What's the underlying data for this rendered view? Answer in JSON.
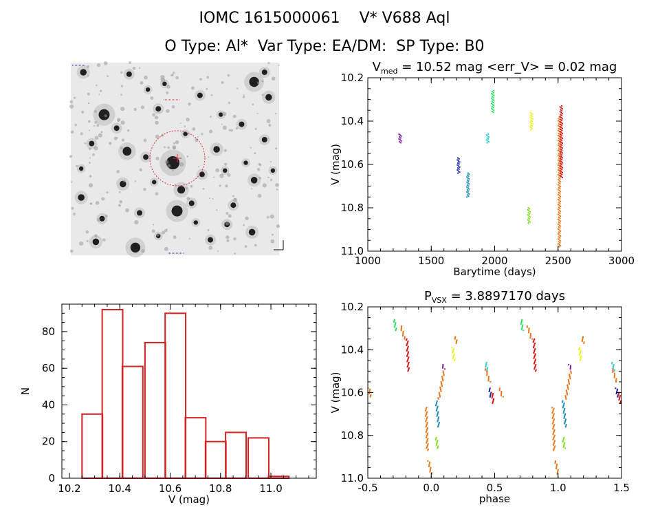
{
  "header": {
    "line1": "IOMC 1615000061    V* V688 Aql",
    "line2": "O Type: Al*  Var Type: EA/DM:  SP Type: B0"
  },
  "colors": {
    "histogram": "#d42020",
    "axes": "#000000",
    "aperture": "#e03030"
  },
  "chart_data": [
    {
      "type": "scatter",
      "panel": "lightcurve",
      "title": "V<sub>med</sub> = 10.52 mag <err_V> = 0.02 mag",
      "title_parts": [
        "V",
        "med",
        " = 10.52 mag <err_V> = 0.02 mag"
      ],
      "xlabel": "Barytime (days)",
      "ylabel": "V (mag)",
      "xlim": [
        1000,
        3000
      ],
      "ylim": [
        10.2,
        11.0
      ],
      "y_inverted": true,
      "xticks": [
        1000,
        1500,
        2000,
        2500,
        3000
      ],
      "yticks": [
        10.2,
        10.4,
        10.6,
        10.8,
        11.0
      ],
      "groups": [
        {
          "color": "#7a1fa0",
          "x": 1255,
          "ymin": 10.46,
          "ymax": 10.5
        },
        {
          "color": "#1e2ab0",
          "x": 1715,
          "ymin": 10.57,
          "ymax": 10.64
        },
        {
          "color": "#1f8fb8",
          "x": 1790,
          "ymin": 10.64,
          "ymax": 10.75
        },
        {
          "color": "#2ad0d0",
          "x": 1945,
          "ymin": 10.46,
          "ymax": 10.5
        },
        {
          "color": "#30e060",
          "x": 1985,
          "ymin": 10.26,
          "ymax": 10.36
        },
        {
          "color": "#f0f020",
          "x": 2290,
          "ymin": 10.36,
          "ymax": 10.44
        },
        {
          "color": "#80e020",
          "x": 2270,
          "ymin": 10.8,
          "ymax": 10.87
        },
        {
          "color": "#e87820",
          "x": 2510,
          "ymin": 10.38,
          "ymax": 10.98
        },
        {
          "color": "#d81818",
          "x": 2525,
          "ymin": 10.33,
          "ymax": 10.66
        }
      ]
    },
    {
      "type": "bar",
      "panel": "histogram",
      "xlabel": "V (mag)",
      "ylabel": "N",
      "xlim": [
        10.17,
        11.18
      ],
      "ylim": [
        0,
        95
      ],
      "xticks": [
        10.2,
        10.4,
        10.6,
        10.8,
        11.0
      ],
      "yticks": [
        0,
        20,
        40,
        60,
        80
      ],
      "bin_width": 0.0815,
      "bins": [
        {
          "x0": 10.25,
          "value": 35
        },
        {
          "x0": 10.33,
          "value": 92
        },
        {
          "x0": 10.41,
          "value": 61
        },
        {
          "x0": 10.5,
          "value": 74
        },
        {
          "x0": 10.58,
          "value": 90
        },
        {
          "x0": 10.66,
          "value": 33
        },
        {
          "x0": 10.74,
          "value": 20
        },
        {
          "x0": 10.82,
          "value": 25
        },
        {
          "x0": 10.91,
          "value": 22
        },
        {
          "x0": 10.99,
          "value": 1
        }
      ]
    },
    {
      "type": "scatter",
      "panel": "phased",
      "title": "P<sub>VSX</sub> = 3.8897170 days",
      "title_parts": [
        "P",
        "VSX",
        " = 3.8897170 days"
      ],
      "xlabel": "phase",
      "ylabel": "V (mag)",
      "xlim": [
        -0.5,
        1.5
      ],
      "ylim": [
        10.2,
        11.0
      ],
      "y_inverted": true,
      "xticks": [
        -0.5,
        0.0,
        0.5,
        1.0,
        1.5
      ],
      "yticks": [
        10.2,
        10.4,
        10.6,
        10.8,
        11.0
      ],
      "segments": [
        {
          "color": "#e87820",
          "points": [
            [
              -0.49,
              10.58
            ],
            [
              -0.48,
              10.62
            ]
          ]
        },
        {
          "color": "#30e060",
          "points": [
            [
              -0.29,
              10.26
            ],
            [
              -0.28,
              10.31
            ]
          ]
        },
        {
          "color": "#e87820",
          "points": [
            [
              -0.24,
              10.29
            ],
            [
              -0.21,
              10.35
            ]
          ]
        },
        {
          "color": "#d81818",
          "points": [
            [
              -0.19,
              10.35
            ],
            [
              -0.18,
              10.5
            ]
          ]
        },
        {
          "color": "#e87820",
          "points": [
            [
              -0.04,
              10.67
            ],
            [
              -0.03,
              10.87
            ]
          ]
        },
        {
          "color": "#e87820",
          "points": [
            [
              -0.02,
              10.92
            ],
            [
              0.0,
              10.98
            ]
          ]
        },
        {
          "color": "#80e020",
          "points": [
            [
              0.04,
              10.81
            ],
            [
              0.05,
              10.86
            ]
          ]
        },
        {
          "color": "#1f8fb8",
          "points": [
            [
              0.04,
              10.64
            ],
            [
              0.06,
              10.76
            ]
          ]
        },
        {
          "color": "#e87820",
          "points": [
            [
              0.06,
              10.63
            ],
            [
              0.1,
              10.5
            ]
          ]
        },
        {
          "color": "#7a1fa0",
          "points": [
            [
              0.09,
              10.47
            ],
            [
              0.1,
              10.49
            ]
          ]
        },
        {
          "color": "#f0f020",
          "points": [
            [
              0.17,
              10.39
            ],
            [
              0.18,
              10.45
            ]
          ]
        },
        {
          "color": "#e87820",
          "points": [
            [
              0.19,
              10.34
            ],
            [
              0.2,
              10.37
            ]
          ]
        },
        {
          "color": "#2ad0d0",
          "points": [
            [
              0.43,
              10.46
            ],
            [
              0.44,
              10.5
            ]
          ]
        },
        {
          "color": "#e87820",
          "points": [
            [
              0.43,
              10.49
            ],
            [
              0.46,
              10.55
            ]
          ]
        },
        {
          "color": "#1e2ab0",
          "points": [
            [
              0.46,
              10.58
            ],
            [
              0.47,
              10.62
            ]
          ]
        },
        {
          "color": "#d81818",
          "points": [
            [
              0.48,
              10.6
            ],
            [
              0.49,
              10.65
            ]
          ]
        },
        {
          "color": "#e87820",
          "points": [
            [
              0.54,
              10.58
            ],
            [
              0.56,
              10.62
            ]
          ]
        },
        {
          "color": "#30e060",
          "points": [
            [
              0.71,
              10.26
            ],
            [
              0.72,
              10.31
            ]
          ]
        },
        {
          "color": "#e87820",
          "points": [
            [
              0.76,
              10.29
            ],
            [
              0.79,
              10.35
            ]
          ]
        },
        {
          "color": "#d81818",
          "points": [
            [
              0.81,
              10.35
            ],
            [
              0.82,
              10.5
            ]
          ]
        },
        {
          "color": "#e87820",
          "points": [
            [
              0.96,
              10.67
            ],
            [
              0.97,
              10.87
            ]
          ]
        },
        {
          "color": "#e87820",
          "points": [
            [
              0.98,
              10.92
            ],
            [
              1.0,
              10.98
            ]
          ]
        },
        {
          "color": "#80e020",
          "points": [
            [
              1.04,
              10.81
            ],
            [
              1.05,
              10.86
            ]
          ]
        },
        {
          "color": "#1f8fb8",
          "points": [
            [
              1.04,
              10.64
            ],
            [
              1.06,
              10.76
            ]
          ]
        },
        {
          "color": "#e87820",
          "points": [
            [
              1.06,
              10.63
            ],
            [
              1.1,
              10.5
            ]
          ]
        },
        {
          "color": "#7a1fa0",
          "points": [
            [
              1.09,
              10.47
            ],
            [
              1.1,
              10.49
            ]
          ]
        },
        {
          "color": "#f0f020",
          "points": [
            [
              1.17,
              10.39
            ],
            [
              1.18,
              10.45
            ]
          ]
        },
        {
          "color": "#e87820",
          "points": [
            [
              1.19,
              10.34
            ],
            [
              1.2,
              10.37
            ]
          ]
        },
        {
          "color": "#2ad0d0",
          "points": [
            [
              1.43,
              10.46
            ],
            [
              1.44,
              10.5
            ]
          ]
        },
        {
          "color": "#e87820",
          "points": [
            [
              1.43,
              10.49
            ],
            [
              1.46,
              10.55
            ]
          ]
        },
        {
          "color": "#1e2ab0",
          "points": [
            [
              1.46,
              10.58
            ],
            [
              1.47,
              10.62
            ]
          ]
        },
        {
          "color": "#d81818",
          "points": [
            [
              1.48,
              10.6
            ],
            [
              1.49,
              10.65
            ]
          ]
        }
      ]
    }
  ],
  "sky_image": {
    "description": "stellar field image",
    "stars": [
      [
        0.06,
        0.05,
        6
      ],
      [
        0.93,
        0.05,
        5
      ],
      [
        0.88,
        0.1,
        9
      ],
      [
        0.95,
        0.18,
        6
      ],
      [
        0.16,
        0.27,
        10
      ],
      [
        0.42,
        0.24,
        5
      ],
      [
        0.62,
        0.17,
        5
      ],
      [
        0.37,
        0.14,
        4
      ],
      [
        0.27,
        0.46,
        8
      ],
      [
        0.49,
        0.52,
        12
      ],
      [
        0.53,
        0.66,
        7
      ],
      [
        0.25,
        0.63,
        6
      ],
      [
        0.7,
        0.45,
        6
      ],
      [
        0.82,
        0.32,
        5
      ],
      [
        0.1,
        0.42,
        5
      ],
      [
        0.05,
        0.7,
        6
      ],
      [
        0.33,
        0.78,
        5
      ],
      [
        0.51,
        0.77,
        10
      ],
      [
        0.58,
        0.73,
        5
      ],
      [
        0.88,
        0.61,
        6
      ],
      [
        0.78,
        0.74,
        5
      ],
      [
        0.31,
        0.96,
        9
      ],
      [
        0.12,
        0.93,
        6
      ],
      [
        0.67,
        0.92,
        5
      ],
      [
        0.87,
        0.88,
        6
      ],
      [
        0.42,
        0.9,
        4
      ],
      [
        0.22,
        0.34,
        5
      ],
      [
        0.74,
        0.56,
        4
      ],
      [
        0.63,
        0.58,
        5
      ],
      [
        0.15,
        0.81,
        5
      ],
      [
        0.4,
        0.62,
        4
      ],
      [
        0.93,
        0.4,
        5
      ],
      [
        0.84,
        0.52,
        4
      ],
      [
        0.72,
        0.27,
        4
      ],
      [
        0.55,
        0.37,
        4
      ],
      [
        0.45,
        0.11,
        4
      ],
      [
        0.28,
        0.06,
        5
      ],
      [
        0.97,
        0.56,
        4
      ],
      [
        0.05,
        0.55,
        4
      ],
      [
        0.6,
        0.83,
        4
      ],
      [
        0.36,
        0.49,
        5
      ],
      [
        0.75,
        0.84,
        5
      ]
    ]
  }
}
